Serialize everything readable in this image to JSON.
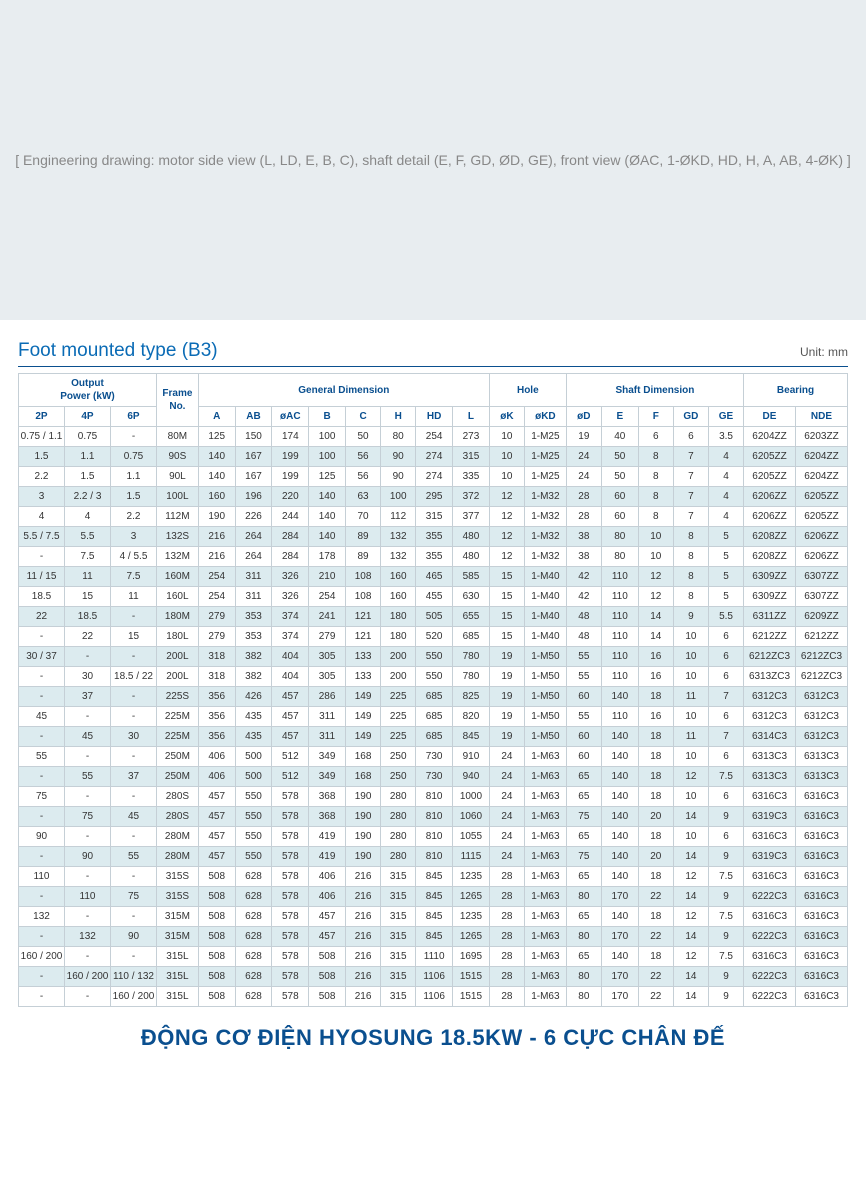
{
  "diagram_placeholder": "[ Engineering drawing: motor side view (L, LD, E, B, C), shaft detail (E, F, GD, ØD, GE), front view (ØAC, 1-ØKD, HD, H, A, AB, 4-ØK) ]",
  "heading": "Foot mounted type (B3)",
  "unit_label": "Unit: mm",
  "footer": "ĐỘNG CƠ ĐIỆN HYOSUNG 18.5KW - 6 CỰC CHÂN ĐẾ",
  "colors": {
    "header_text": "#0a4f8f",
    "title_text": "#0a6bb5",
    "border": "#c5cfd6",
    "row_alt_bg": "#dcebef",
    "diagram_bg": "#e8edf0"
  },
  "group_headers": [
    {
      "label": "Output\nPower (kW)",
      "span": 3
    },
    {
      "label": "Frame\nNo.",
      "span": 1,
      "rowspan": 2
    },
    {
      "label": "General Dimension",
      "span": 8
    },
    {
      "label": "Hole",
      "span": 2
    },
    {
      "label": "Shaft Dimension",
      "span": 5
    },
    {
      "label": "Bearing",
      "span": 2
    }
  ],
  "sub_headers": [
    "2P",
    "4P",
    "6P",
    "A",
    "AB",
    "øAC",
    "B",
    "C",
    "H",
    "HD",
    "L",
    "øK",
    "øKD",
    "øD",
    "E",
    "F",
    "GD",
    "GE",
    "DE",
    "NDE"
  ],
  "col_widths_pct": [
    5.5,
    5.5,
    5.5,
    5.0,
    4.4,
    4.4,
    4.4,
    4.4,
    4.2,
    4.2,
    4.4,
    4.4,
    4.2,
    5.0,
    4.2,
    4.4,
    4.2,
    4.2,
    4.2,
    6.2,
    6.2
  ],
  "rows": [
    [
      "0.75 / 1.1",
      "0.75",
      "-",
      "80M",
      "125",
      "150",
      "174",
      "100",
      "50",
      "80",
      "254",
      "273",
      "10",
      "1-M25",
      "19",
      "40",
      "6",
      "6",
      "3.5",
      "6204ZZ",
      "6203ZZ"
    ],
    [
      "1.5",
      "1.1",
      "0.75",
      "90S",
      "140",
      "167",
      "199",
      "100",
      "56",
      "90",
      "274",
      "315",
      "10",
      "1-M25",
      "24",
      "50",
      "8",
      "7",
      "4",
      "6205ZZ",
      "6204ZZ"
    ],
    [
      "2.2",
      "1.5",
      "1.1",
      "90L",
      "140",
      "167",
      "199",
      "125",
      "56",
      "90",
      "274",
      "335",
      "10",
      "1-M25",
      "24",
      "50",
      "8",
      "7",
      "4",
      "6205ZZ",
      "6204ZZ"
    ],
    [
      "3",
      "2.2 / 3",
      "1.5",
      "100L",
      "160",
      "196",
      "220",
      "140",
      "63",
      "100",
      "295",
      "372",
      "12",
      "1-M32",
      "28",
      "60",
      "8",
      "7",
      "4",
      "6206ZZ",
      "6205ZZ"
    ],
    [
      "4",
      "4",
      "2.2",
      "112M",
      "190",
      "226",
      "244",
      "140",
      "70",
      "112",
      "315",
      "377",
      "12",
      "1-M32",
      "28",
      "60",
      "8",
      "7",
      "4",
      "6206ZZ",
      "6205ZZ"
    ],
    [
      "5.5 / 7.5",
      "5.5",
      "3",
      "132S",
      "216",
      "264",
      "284",
      "140",
      "89",
      "132",
      "355",
      "480",
      "12",
      "1-M32",
      "38",
      "80",
      "10",
      "8",
      "5",
      "6208ZZ",
      "6206ZZ"
    ],
    [
      "-",
      "7.5",
      "4 / 5.5",
      "132M",
      "216",
      "264",
      "284",
      "178",
      "89",
      "132",
      "355",
      "480",
      "12",
      "1-M32",
      "38",
      "80",
      "10",
      "8",
      "5",
      "6208ZZ",
      "6206ZZ"
    ],
    [
      "11 / 15",
      "11",
      "7.5",
      "160M",
      "254",
      "311",
      "326",
      "210",
      "108",
      "160",
      "465",
      "585",
      "15",
      "1-M40",
      "42",
      "110",
      "12",
      "8",
      "5",
      "6309ZZ",
      "6307ZZ"
    ],
    [
      "18.5",
      "15",
      "11",
      "160L",
      "254",
      "311",
      "326",
      "254",
      "108",
      "160",
      "455",
      "630",
      "15",
      "1-M40",
      "42",
      "110",
      "12",
      "8",
      "5",
      "6309ZZ",
      "6307ZZ"
    ],
    [
      "22",
      "18.5",
      "-",
      "180M",
      "279",
      "353",
      "374",
      "241",
      "121",
      "180",
      "505",
      "655",
      "15",
      "1-M40",
      "48",
      "110",
      "14",
      "9",
      "5.5",
      "6311ZZ",
      "6209ZZ"
    ],
    [
      "-",
      "22",
      "15",
      "180L",
      "279",
      "353",
      "374",
      "279",
      "121",
      "180",
      "520",
      "685",
      "15",
      "1-M40",
      "48",
      "110",
      "14",
      "10",
      "6",
      "6212ZZ",
      "6212ZZ"
    ],
    [
      "30 / 37",
      "-",
      "-",
      "200L",
      "318",
      "382",
      "404",
      "305",
      "133",
      "200",
      "550",
      "780",
      "19",
      "1-M50",
      "55",
      "110",
      "16",
      "10",
      "6",
      "6212ZC3",
      "6212ZC3"
    ],
    [
      "-",
      "30",
      "18.5 / 22",
      "200L",
      "318",
      "382",
      "404",
      "305",
      "133",
      "200",
      "550",
      "780",
      "19",
      "1-M50",
      "55",
      "110",
      "16",
      "10",
      "6",
      "6313ZC3",
      "6212ZC3"
    ],
    [
      "-",
      "37",
      "-",
      "225S",
      "356",
      "426",
      "457",
      "286",
      "149",
      "225",
      "685",
      "825",
      "19",
      "1-M50",
      "60",
      "140",
      "18",
      "11",
      "7",
      "6312C3",
      "6312C3"
    ],
    [
      "45",
      "-",
      "-",
      "225M",
      "356",
      "435",
      "457",
      "311",
      "149",
      "225",
      "685",
      "820",
      "19",
      "1-M50",
      "55",
      "110",
      "16",
      "10",
      "6",
      "6312C3",
      "6312C3"
    ],
    [
      "-",
      "45",
      "30",
      "225M",
      "356",
      "435",
      "457",
      "311",
      "149",
      "225",
      "685",
      "845",
      "19",
      "1-M50",
      "60",
      "140",
      "18",
      "11",
      "7",
      "6314C3",
      "6312C3"
    ],
    [
      "55",
      "-",
      "-",
      "250M",
      "406",
      "500",
      "512",
      "349",
      "168",
      "250",
      "730",
      "910",
      "24",
      "1-M63",
      "60",
      "140",
      "18",
      "10",
      "6",
      "6313C3",
      "6313C3"
    ],
    [
      "-",
      "55",
      "37",
      "250M",
      "406",
      "500",
      "512",
      "349",
      "168",
      "250",
      "730",
      "940",
      "24",
      "1-M63",
      "65",
      "140",
      "18",
      "12",
      "7.5",
      "6313C3",
      "6313C3"
    ],
    [
      "75",
      "-",
      "-",
      "280S",
      "457",
      "550",
      "578",
      "368",
      "190",
      "280",
      "810",
      "1000",
      "24",
      "1-M63",
      "65",
      "140",
      "18",
      "10",
      "6",
      "6316C3",
      "6316C3"
    ],
    [
      "-",
      "75",
      "45",
      "280S",
      "457",
      "550",
      "578",
      "368",
      "190",
      "280",
      "810",
      "1060",
      "24",
      "1-M63",
      "75",
      "140",
      "20",
      "14",
      "9",
      "6319C3",
      "6316C3"
    ],
    [
      "90",
      "-",
      "-",
      "280M",
      "457",
      "550",
      "578",
      "419",
      "190",
      "280",
      "810",
      "1055",
      "24",
      "1-M63",
      "65",
      "140",
      "18",
      "10",
      "6",
      "6316C3",
      "6316C3"
    ],
    [
      "-",
      "90",
      "55",
      "280M",
      "457",
      "550",
      "578",
      "419",
      "190",
      "280",
      "810",
      "1115",
      "24",
      "1-M63",
      "75",
      "140",
      "20",
      "14",
      "9",
      "6319C3",
      "6316C3"
    ],
    [
      "110",
      "-",
      "-",
      "315S",
      "508",
      "628",
      "578",
      "406",
      "216",
      "315",
      "845",
      "1235",
      "28",
      "1-M63",
      "65",
      "140",
      "18",
      "12",
      "7.5",
      "6316C3",
      "6316C3"
    ],
    [
      "-",
      "110",
      "75",
      "315S",
      "508",
      "628",
      "578",
      "406",
      "216",
      "315",
      "845",
      "1265",
      "28",
      "1-M63",
      "80",
      "170",
      "22",
      "14",
      "9",
      "6222C3",
      "6316C3"
    ],
    [
      "132",
      "-",
      "-",
      "315M",
      "508",
      "628",
      "578",
      "457",
      "216",
      "315",
      "845",
      "1235",
      "28",
      "1-M63",
      "65",
      "140",
      "18",
      "12",
      "7.5",
      "6316C3",
      "6316C3"
    ],
    [
      "-",
      "132",
      "90",
      "315M",
      "508",
      "628",
      "578",
      "457",
      "216",
      "315",
      "845",
      "1265",
      "28",
      "1-M63",
      "80",
      "170",
      "22",
      "14",
      "9",
      "6222C3",
      "6316C3"
    ],
    [
      "160 / 200",
      "-",
      "-",
      "315L",
      "508",
      "628",
      "578",
      "508",
      "216",
      "315",
      "1110",
      "1695",
      "28",
      "1-M63",
      "65",
      "140",
      "18",
      "12",
      "7.5",
      "6316C3",
      "6316C3"
    ],
    [
      "-",
      "160 / 200",
      "110 / 132",
      "315L",
      "508",
      "628",
      "578",
      "508",
      "216",
      "315",
      "1106",
      "1515",
      "28",
      "1-M63",
      "80",
      "170",
      "22",
      "14",
      "9",
      "6222C3",
      "6316C3"
    ],
    [
      "-",
      "-",
      "160 / 200",
      "315L",
      "508",
      "628",
      "578",
      "508",
      "216",
      "315",
      "1106",
      "1515",
      "28",
      "1-M63",
      "80",
      "170",
      "22",
      "14",
      "9",
      "6222C3",
      "6316C3"
    ]
  ]
}
